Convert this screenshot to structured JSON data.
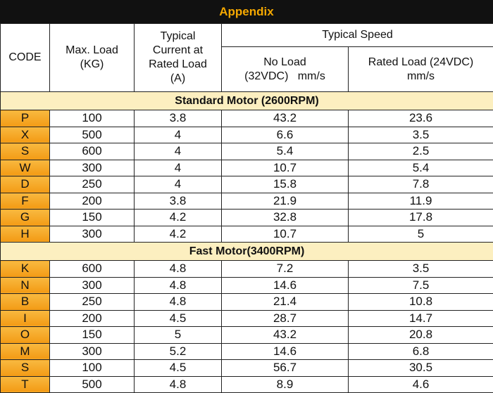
{
  "title": "Appendix",
  "table": {
    "headers": {
      "code": [
        "CODE"
      ],
      "max_load": [
        "Max. Load",
        "(KG)"
      ],
      "current": [
        "Typical",
        "Current at",
        "Rated Load",
        "(A)"
      ],
      "speed": [
        "Typical Speed"
      ],
      "no_load": [
        "No Load",
        "(32VDC)   mm/s"
      ],
      "rated_load": [
        "Rated Load (24VDC)",
        "mm/s"
      ]
    },
    "sections": [
      {
        "title": "Standard Motor (2600RPM)",
        "rows": [
          [
            "P",
            "100",
            "3.8",
            "43.2",
            "23.6"
          ],
          [
            "X",
            "500",
            "4",
            "6.6",
            "3.5"
          ],
          [
            "S",
            "600",
            "4",
            "5.4",
            "2.5"
          ],
          [
            "W",
            "300",
            "4",
            "10.7",
            "5.4"
          ],
          [
            "D",
            "250",
            "4",
            "15.8",
            "7.8"
          ],
          [
            "F",
            "200",
            "3.8",
            "21.9",
            "11.9"
          ],
          [
            "G",
            "150",
            "4.2",
            "32.8",
            "17.8"
          ],
          [
            "H",
            "300",
            "4.2",
            "10.7",
            "5"
          ]
        ]
      },
      {
        "title": "Fast Motor(3400RPM)",
        "rows": [
          [
            "K",
            "600",
            "4.8",
            "7.2",
            "3.5"
          ],
          [
            "N",
            "300",
            "4.8",
            "14.6",
            "7.5"
          ],
          [
            "B",
            "250",
            "4.8",
            "21.4",
            "10.8"
          ],
          [
            "I",
            "200",
            "4.5",
            "28.7",
            "14.7"
          ],
          [
            "O",
            "150",
            "5",
            "43.2",
            "20.8"
          ],
          [
            "M",
            "300",
            "5.2",
            "14.6",
            "6.8"
          ],
          [
            "S",
            "100",
            "4.5",
            "56.7",
            "30.5"
          ],
          [
            "T",
            "500",
            "4.8",
            "8.9",
            "4.6"
          ]
        ]
      }
    ]
  }
}
